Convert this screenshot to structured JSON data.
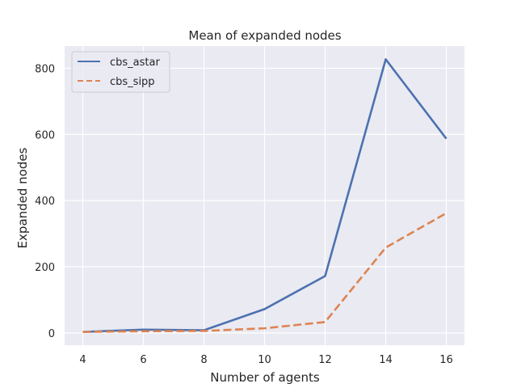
{
  "chart_data": {
    "type": "line",
    "title": "Mean of expanded nodes",
    "xlabel": "Number of agents",
    "ylabel": "Expanded nodes",
    "x": [
      4,
      6,
      8,
      10,
      12,
      14,
      16
    ],
    "xticks": [
      4,
      6,
      8,
      10,
      12,
      14,
      16
    ],
    "yticks": [
      0,
      200,
      400,
      600,
      800
    ],
    "xlim": [
      3.4,
      16.6
    ],
    "ylim": [
      -37,
      867
    ],
    "grid": true,
    "legend_position": "top-left",
    "background_color": "#eaeaf2",
    "grid_color": "#ffffff",
    "series": [
      {
        "name": "cbs_astar",
        "values": [
          3,
          10,
          8,
          72,
          172,
          827,
          587
        ],
        "color": "#4c72b0",
        "style": "solid"
      },
      {
        "name": "cbs_sipp",
        "values": [
          3,
          5,
          6,
          14,
          33,
          258,
          362
        ],
        "color": "#dd8452",
        "style": "dashed"
      }
    ]
  }
}
